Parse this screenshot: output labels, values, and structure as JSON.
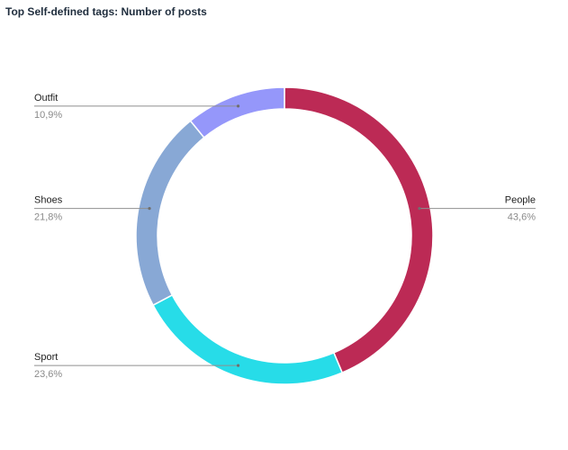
{
  "chart_data": {
    "type": "pie",
    "variant": "donut",
    "title": "Top Self-defined tags: Number of posts",
    "slices": [
      {
        "label": "People",
        "value": 43.6,
        "value_label": "43,6%",
        "color": "#bc2a55",
        "label_side": "right"
      },
      {
        "label": "Sport",
        "value": 23.6,
        "value_label": "23,6%",
        "color": "#27dce8",
        "label_side": "left"
      },
      {
        "label": "Shoes",
        "value": 21.8,
        "value_label": "21,8%",
        "color": "#88a8d5",
        "label_side": "left"
      },
      {
        "label": "Outfit",
        "value": 10.9,
        "value_label": "10,9%",
        "color": "#9597fa",
        "label_side": "left"
      }
    ],
    "start_angle": "top",
    "direction": "clockwise",
    "legend": "none"
  }
}
